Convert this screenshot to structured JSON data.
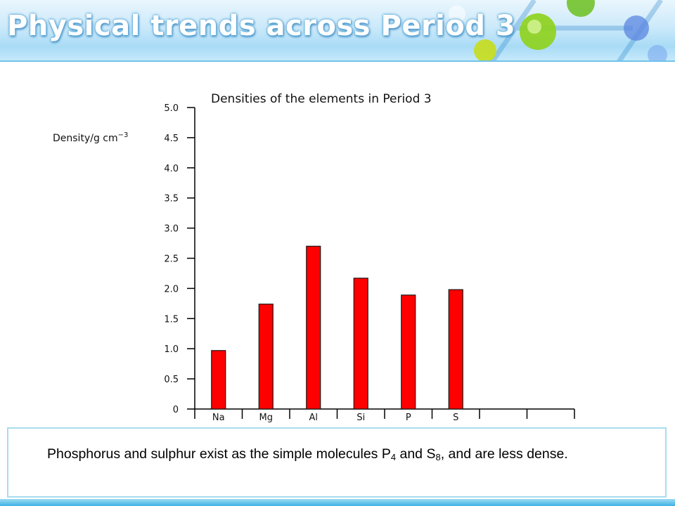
{
  "slide": {
    "title": "Physical trends across Period 3"
  },
  "caption": {
    "part1": "Phosphorus and sulphur exist as the simple molecules P",
    "sub1": "4",
    "part2": " and S",
    "sub2": "8",
    "part3": ", and are less dense."
  },
  "colors": {
    "bar": "#ff0000",
    "bar_outline": "#1a1a1a",
    "axis": "#000000",
    "banner_light": "#eaf6fd",
    "banner_blue": "#a9dbf6",
    "caption_border": "#a8dcef",
    "footer": "#3fb2e4"
  },
  "chart_data": {
    "type": "bar",
    "title": "Densities of the elements in Period 3",
    "ylabel": "Density/g cm",
    "ylabel_superscript": "−3",
    "categories": [
      "Na",
      "Mg",
      "Al",
      "Si",
      "P",
      "S",
      "",
      ""
    ],
    "values": [
      0.97,
      1.74,
      2.7,
      2.17,
      1.89,
      1.98,
      null,
      null
    ],
    "ylim": [
      0,
      5.0
    ],
    "yticks": [
      "0",
      "0.5",
      "1.0",
      "1.5",
      "2.0",
      "2.5",
      "3.0",
      "3.5",
      "4.0",
      "4.5",
      "5.0"
    ],
    "grid": false,
    "legend": "none"
  }
}
